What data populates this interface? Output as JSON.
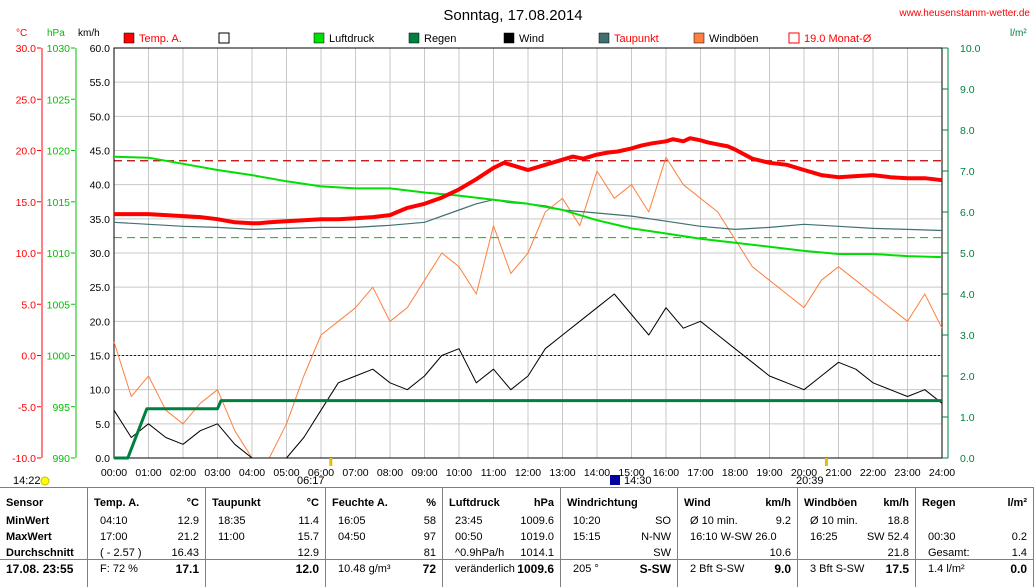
{
  "title": "Sonntag, 17.08.2014",
  "website": "www.heusenstamm-wetter.de",
  "units": {
    "temp": "°C",
    "pressure": "hPa",
    "wind": "km/h",
    "rain": "l/m²"
  },
  "legend": [
    {
      "label": "Temp. A.",
      "color": "#ff0000",
      "filled": true
    },
    {
      "label": "",
      "color": "#000000",
      "filled": false
    },
    {
      "label": "Luftdruck",
      "color": "#00e000",
      "filled": true
    },
    {
      "label": "Regen",
      "color": "#008040",
      "filled": true
    },
    {
      "label": "Wind",
      "color": "#000000",
      "filled": true
    },
    {
      "label": "Taupunkt",
      "color": "#407070",
      "filled": true
    },
    {
      "label": "Windböen",
      "color": "#ff8040",
      "filled": true
    },
    {
      "label": "19.0 Monat-Ø",
      "color": "#ff0000",
      "filled": false
    }
  ],
  "colors": {
    "temp": "#ff0000",
    "pressure": "#00e000",
    "rain": "#008040",
    "wind": "#000000",
    "dew": "#407070",
    "gust": "#ff8040",
    "avg": "#c00000",
    "axis_temp": "#ff0000",
    "axis_pressure": "#00c000",
    "axis_rain": "#008040"
  },
  "markers": {
    "sunrise": "06:17",
    "sunset": "20:39",
    "now_left": "14:22",
    "now_mid": "14:30"
  },
  "chart_data": {
    "type": "line",
    "x_ticks": [
      "00:00",
      "01:00",
      "02:00",
      "03:00",
      "04:00",
      "05:00",
      "06:00",
      "07:00",
      "08:00",
      "09:00",
      "10:00",
      "11:00",
      "12:00",
      "13:00",
      "14:00",
      "15:00",
      "16:00",
      "17:00",
      "18:00",
      "19:00",
      "20:00",
      "21:00",
      "22:00",
      "23:00",
      "24:00"
    ],
    "xlim": [
      0,
      24
    ],
    "axes": {
      "temp": {
        "ticks": [
          "30.0",
          "25.0",
          "20.0",
          "15.0",
          "10.0",
          "5.0",
          "0.0",
          "-5.0",
          "-10.0"
        ],
        "ylim": [
          -10,
          30
        ]
      },
      "pressure": {
        "ticks": [
          "1030",
          "1025",
          "1020",
          "1015",
          "1010",
          "1005",
          "1000",
          "995",
          "990"
        ],
        "ylim": [
          990,
          1030
        ]
      },
      "wind": {
        "ticks": [
          "60.0",
          "55.0",
          "50.0",
          "45.0",
          "40.0",
          "35.0",
          "30.0",
          "25.0",
          "20.0",
          "15.0",
          "10.0",
          "5.0",
          "0.0"
        ],
        "ylim": [
          0,
          60
        ]
      },
      "rain": {
        "ticks": [
          "10.0",
          "9.0",
          "8.0",
          "7.0",
          "6.0",
          "5.0",
          "4.0",
          "3.0",
          "2.0",
          "1.0",
          "0.0"
        ],
        "ylim": [
          0,
          10
        ]
      }
    },
    "reference_lines": {
      "month_avg_temp": 19.0,
      "temp_zero": 0.0,
      "dew_ref": 11.5
    },
    "series": [
      {
        "name": "Temp. A.",
        "axis": "temp",
        "x": [
          0,
          0.5,
          1,
          1.5,
          2,
          2.5,
          3,
          3.5,
          4,
          4.2,
          4.5,
          5,
          5.5,
          6,
          6.5,
          7,
          7.5,
          8,
          8.5,
          9,
          9.5,
          10,
          10.5,
          11,
          11.3,
          11.5,
          12,
          12.5,
          13,
          13.3,
          13.6,
          14,
          14.3,
          14.6,
          15,
          15.3,
          15.6,
          16,
          16.2,
          16.5,
          16.7,
          17,
          17.2,
          17.5,
          17.8,
          18,
          18.5,
          19,
          19.5,
          20,
          20.5,
          21,
          21.5,
          22,
          22.5,
          23,
          23.5,
          24
        ],
        "y": [
          13.8,
          13.8,
          13.8,
          13.7,
          13.6,
          13.5,
          13.3,
          13.0,
          12.9,
          12.9,
          13.0,
          13.1,
          13.2,
          13.3,
          13.3,
          13.4,
          13.5,
          13.7,
          14.4,
          14.8,
          15.4,
          16.2,
          17.2,
          18.3,
          18.8,
          18.6,
          18.1,
          18.6,
          19.1,
          19.4,
          19.2,
          19.6,
          19.8,
          19.9,
          20.2,
          20.5,
          20.7,
          20.9,
          21.1,
          20.9,
          21.2,
          21.0,
          20.8,
          20.6,
          20.4,
          20.1,
          19.2,
          18.8,
          18.6,
          18.1,
          17.6,
          17.4,
          17.5,
          17.6,
          17.4,
          17.3,
          17.3,
          17.1
        ]
      },
      {
        "name": "Taupunkt",
        "axis": "temp",
        "x": [
          0,
          1,
          2,
          3,
          4,
          5,
          6,
          7,
          8,
          9,
          10,
          10.5,
          11,
          11.5,
          12,
          12.5,
          13,
          14,
          15,
          16,
          17,
          18,
          19,
          20,
          21,
          22,
          23,
          24
        ],
        "y": [
          13.0,
          12.8,
          12.6,
          12.5,
          12.3,
          12.4,
          12.5,
          12.5,
          12.7,
          13.0,
          14.2,
          14.8,
          15.2,
          14.9,
          14.8,
          14.6,
          14.2,
          13.9,
          13.6,
          13.1,
          12.6,
          12.3,
          12.5,
          12.8,
          12.6,
          12.4,
          12.3,
          12.2
        ]
      },
      {
        "name": "Luftdruck",
        "axis": "pressure",
        "x": [
          0,
          1,
          2,
          3,
          4,
          5,
          6,
          7,
          8,
          9,
          10,
          11,
          12,
          13,
          14,
          15,
          16,
          17,
          18,
          19,
          20,
          21,
          22,
          23,
          24
        ],
        "y": [
          1019.4,
          1019.3,
          1018.7,
          1018.1,
          1017.6,
          1017.0,
          1016.5,
          1016.3,
          1016.3,
          1015.9,
          1015.6,
          1015.2,
          1014.8,
          1014.2,
          1013.2,
          1012.4,
          1011.9,
          1011.4,
          1011.0,
          1010.6,
          1010.2,
          1009.9,
          1009.9,
          1009.7,
          1009.6
        ]
      },
      {
        "name": "Regen",
        "axis": "rain",
        "x": [
          0,
          0.4,
          0.95,
          1.0,
          3.0,
          3.1,
          24
        ],
        "y": [
          0,
          0,
          1.2,
          1.2,
          1.2,
          1.4,
          1.4
        ]
      },
      {
        "name": "Wind",
        "axis": "wind",
        "x": [
          0,
          0.5,
          1,
          1.5,
          2,
          2.5,
          3,
          3.5,
          4,
          4.5,
          5,
          5.5,
          6,
          6.5,
          7,
          7.5,
          8,
          8.5,
          9,
          9.5,
          10,
          10.5,
          11,
          11.5,
          12,
          12.5,
          13,
          13.5,
          14,
          14.5,
          15,
          15.5,
          16,
          16.5,
          17,
          17.5,
          18,
          18.5,
          19,
          19.5,
          20,
          20.5,
          21,
          21.5,
          22,
          22.5,
          23,
          23.5,
          24
        ],
        "y": [
          7,
          3,
          5,
          3,
          2,
          4,
          5,
          2,
          0,
          0,
          0,
          3,
          7,
          11,
          12,
          13,
          11,
          10,
          12,
          15,
          16,
          11,
          13,
          10,
          12,
          16,
          18,
          20,
          22,
          24,
          21,
          18,
          22,
          19,
          20,
          18,
          16,
          14,
          12,
          11,
          10,
          12,
          14,
          13,
          11,
          10,
          9,
          10,
          8
        ]
      },
      {
        "name": "Windböen",
        "axis": "wind",
        "x": [
          0,
          0.5,
          1,
          1.5,
          2,
          2.5,
          3,
          3.5,
          4,
          4.5,
          5,
          5.5,
          6,
          6.5,
          7,
          7.5,
          8,
          8.5,
          9,
          9.5,
          10,
          10.5,
          11,
          11.5,
          12,
          12.5,
          13,
          13.5,
          14,
          14.5,
          15,
          15.5,
          16,
          16.5,
          17,
          17.5,
          18,
          18.5,
          19,
          19.5,
          20,
          20.5,
          21,
          21.5,
          22,
          22.5,
          23,
          23.5,
          24
        ],
        "y": [
          17,
          9,
          12,
          7,
          5,
          8,
          10,
          4,
          0,
          0,
          5,
          12,
          18,
          20,
          22,
          25,
          20,
          22,
          26,
          30,
          28,
          24,
          34,
          27,
          30,
          36,
          38,
          34,
          42,
          38,
          40,
          36,
          44,
          40,
          38,
          36,
          32,
          28,
          26,
          24,
          22,
          26,
          28,
          26,
          24,
          22,
          20,
          24,
          19
        ]
      }
    ]
  },
  "table": {
    "columns": [
      {
        "head": "Sensor",
        "unit": "",
        "rows": [
          [
            "MinWert",
            ""
          ],
          [
            "MaxWert",
            ""
          ],
          [
            "Durchschnitt",
            ""
          ],
          [
            "17.08. 23:55",
            ""
          ]
        ]
      },
      {
        "head": "Temp. A.",
        "unit": "°C",
        "rows": [
          [
            "04:10",
            "12.9"
          ],
          [
            "17:00",
            "21.2"
          ],
          [
            "( - 2.57 )",
            "16.43"
          ],
          [
            "F: 72 %",
            "17.1"
          ]
        ]
      },
      {
        "head": "Taupunkt",
        "unit": "°C",
        "rows": [
          [
            "18:35",
            "11.4"
          ],
          [
            "11:00",
            "15.7"
          ],
          [
            "",
            "12.9"
          ],
          [
            "",
            "12.0"
          ]
        ]
      },
      {
        "head": "Feuchte A.",
        "unit": "%",
        "rows": [
          [
            "16:05",
            "58"
          ],
          [
            "04:50",
            "97"
          ],
          [
            "",
            "81"
          ],
          [
            "10.48 g/m³",
            "72"
          ]
        ]
      },
      {
        "head": "Luftdruck",
        "unit": "hPa",
        "rows": [
          [
            "23:45",
            "1009.6"
          ],
          [
            "00:50",
            "1019.0"
          ],
          [
            "^0.9hPa/h",
            "1014.1"
          ],
          [
            "veränderlich",
            "1009.6"
          ]
        ]
      },
      {
        "head": "Windrichtung",
        "unit": "",
        "rows": [
          [
            "10:20",
            "SO"
          ],
          [
            "15:15",
            "N-NW"
          ],
          [
            "",
            "SW"
          ],
          [
            "205 °",
            "S-SW"
          ]
        ]
      },
      {
        "head": "Wind",
        "unit": "km/h",
        "rows": [
          [
            "Ø 10 min.",
            "9.2"
          ],
          [
            "16:10  W-SW 26.0",
            ""
          ],
          [
            "",
            "10.6"
          ],
          [
            "2 Bft S-SW",
            "9.0"
          ]
        ]
      },
      {
        "head": "Windböen",
        "unit": "km/h",
        "rows": [
          [
            "Ø 10 min.",
            "18.8"
          ],
          [
            "16:25",
            "SW 52.4"
          ],
          [
            "",
            "21.8"
          ],
          [
            "3 Bft S-SW",
            "17.5"
          ]
        ]
      },
      {
        "head": "Regen",
        "unit": "l/m²",
        "rows": [
          [
            "",
            ""
          ],
          [
            "00:30",
            "0.2"
          ],
          [
            "Gesamt:",
            "1.4"
          ],
          [
            "1.4 l/m²",
            "0.0"
          ]
        ]
      }
    ]
  }
}
